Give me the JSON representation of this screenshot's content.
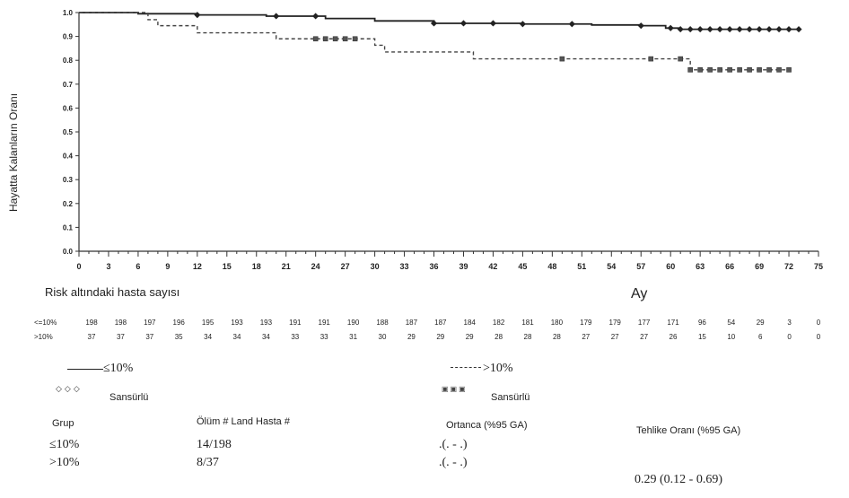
{
  "chart_data": {
    "type": "line",
    "ylabel": "Hayatta Kalanların Oranı",
    "xlabel": "Ay",
    "xlim": [
      0,
      75
    ],
    "ylim": [
      0,
      1.0
    ],
    "x_ticks": [
      "0",
      "3",
      "6",
      "9",
      "12",
      "15",
      "18",
      "21",
      "24",
      "27",
      "30",
      "33",
      "36",
      "39",
      "42",
      "45",
      "48",
      "51",
      "54",
      "57",
      "60",
      "63",
      "66",
      "69",
      "72",
      "75"
    ],
    "y_ticks": [
      "0.0",
      "0.1",
      "0.2",
      "0.3",
      "0.4",
      "0.5",
      "0.6",
      "0.7",
      "0.8",
      "0.9",
      "1.0"
    ],
    "grid": false,
    "series": [
      {
        "name": "≤10%",
        "style": "solid",
        "color": "#222222",
        "x": [
          0,
          6,
          12,
          19,
          25,
          30,
          36,
          45,
          52,
          57,
          59.5,
          61,
          73
        ],
        "y": [
          1.0,
          0.995,
          0.99,
          0.985,
          0.975,
          0.965,
          0.955,
          0.952,
          0.948,
          0.945,
          0.935,
          0.93,
          0.93
        ],
        "censored_x": [
          12,
          20,
          24,
          36,
          39,
          42,
          45,
          50,
          57,
          60,
          61,
          62,
          63,
          64,
          65,
          66,
          67,
          68,
          69,
          70,
          71,
          72,
          73
        ]
      },
      {
        "name": ">10%",
        "style": "dashed",
        "color": "#444444",
        "x": [
          0,
          6,
          7,
          8,
          12,
          20,
          30,
          31,
          40,
          60,
          62,
          72
        ],
        "y": [
          1.0,
          1.0,
          0.97,
          0.945,
          0.915,
          0.89,
          0.863,
          0.835,
          0.806,
          0.806,
          0.76,
          0.76
        ],
        "censored_x": [
          24,
          25,
          26,
          27,
          28,
          49,
          58,
          61,
          62,
          63,
          64,
          65,
          66,
          67,
          68,
          69,
          70,
          71,
          72
        ]
      }
    ]
  },
  "risk_table": {
    "title": "Risk altındaki hasta sayısı",
    "rows": [
      {
        "label": "<=10%",
        "values": [
          "198",
          "198",
          "197",
          "196",
          "195",
          "193",
          "193",
          "191",
          "191",
          "190",
          "188",
          "187",
          "187",
          "184",
          "182",
          "181",
          "180",
          "179",
          "179",
          "177",
          "171",
          "96",
          "54",
          "29",
          "3",
          "0"
        ]
      },
      {
        "label": ">10%",
        "values": [
          "37",
          "37",
          "37",
          "35",
          "34",
          "34",
          "34",
          "33",
          "33",
          "31",
          "30",
          "29",
          "29",
          "29",
          "28",
          "28",
          "28",
          "27",
          "27",
          "27",
          "26",
          "15",
          "10",
          "6",
          "0",
          "0"
        ]
      }
    ]
  },
  "legend": {
    "group1_label": "≤10%",
    "group1_censored": "Sansürlü",
    "group2_label": ">10%",
    "group2_censored": "Sansürlü"
  },
  "stats_table": {
    "headers": {
      "group": "Grup",
      "deaths": "Ölüm # Land Hasta #",
      "median": "Ortanca (%95 GA)",
      "hazard": "Tehlike Oranı (%95 GA)"
    },
    "rows": [
      {
        "group": "≤10%",
        "deaths": "14/198",
        "median": ".(. - .)"
      },
      {
        "group": ">10%",
        "deaths": "8/37",
        "median": ".(. - .)"
      }
    ],
    "hazard_ratio": "0.29 (0.12 - 0.69)"
  }
}
